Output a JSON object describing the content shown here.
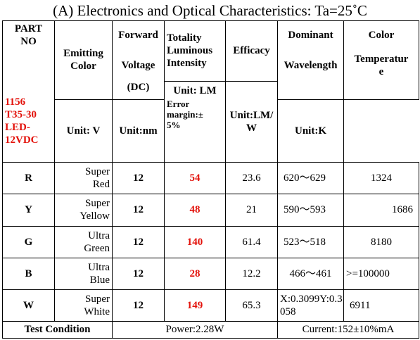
{
  "title": "(A) Electronics and Optical Characteristics: Ta=25˚C",
  "headers": {
    "part_no_line1": "PART",
    "part_no_line2": "NO",
    "part_desc": [
      "1156",
      "T35-30",
      "LED-",
      "12VDC"
    ],
    "emitting_color_line1": "Emitting",
    "emitting_color_line2": "Color",
    "forward_line1": "Forward",
    "voltage": "Voltage",
    "dc": "(DC)",
    "unit_v": "Unit: V",
    "totality_lines": [
      "Totality",
      "Luminous",
      "Intensity"
    ],
    "unit_lm": "Unit: LM",
    "error_lines": [
      "Error",
      "margin:±",
      "5%"
    ],
    "efficacy": "Efficacy",
    "unit_lmw_line1": "Unit:LM/",
    "unit_lmw_line2": "W",
    "dominant": "Dominant",
    "wavelength": "Wavelength",
    "unit_nm": "Unit:nm",
    "color": "Color",
    "temperature_line1": "Temperatur",
    "temperature_line2": "e",
    "unit_k": "Unit:K"
  },
  "rows": [
    {
      "code": "R",
      "color_line1": "Super",
      "color_line2": "Red",
      "voltage": "12",
      "lumens": "54",
      "efficacy": "23.6",
      "wavelength": "620～629",
      "temp": "1324"
    },
    {
      "code": "Y",
      "color_line1": "Super",
      "color_line2": "Yellow",
      "voltage": "12",
      "lumens": "48",
      "efficacy": "21",
      "wavelength": "590～593",
      "temp": "1686"
    },
    {
      "code": "G",
      "color_line1": "Ultra",
      "color_line2": "Green",
      "voltage": "12",
      "lumens": "140",
      "efficacy": "61.4",
      "wavelength": "523～518",
      "temp": "8180"
    },
    {
      "code": "B",
      "color_line1": "Ultra",
      "color_line2": "Blue",
      "voltage": "12",
      "lumens": "28",
      "efficacy": "12.2",
      "wavelength": "466～461",
      "temp": ">=100000"
    },
    {
      "code": "W",
      "color_line1": "Super",
      "color_line2": "White",
      "voltage": "12",
      "lumens": "149",
      "efficacy": "65.3",
      "wavelength_line1": "X:0.3099Y:0.3",
      "wavelength_line2": "058",
      "temp": "6911"
    }
  ],
  "footer": {
    "label": "Test Condition",
    "power": "Power:2.28W",
    "current": "Current:152±10%mA"
  },
  "colors": {
    "highlight": "#e3120b"
  }
}
